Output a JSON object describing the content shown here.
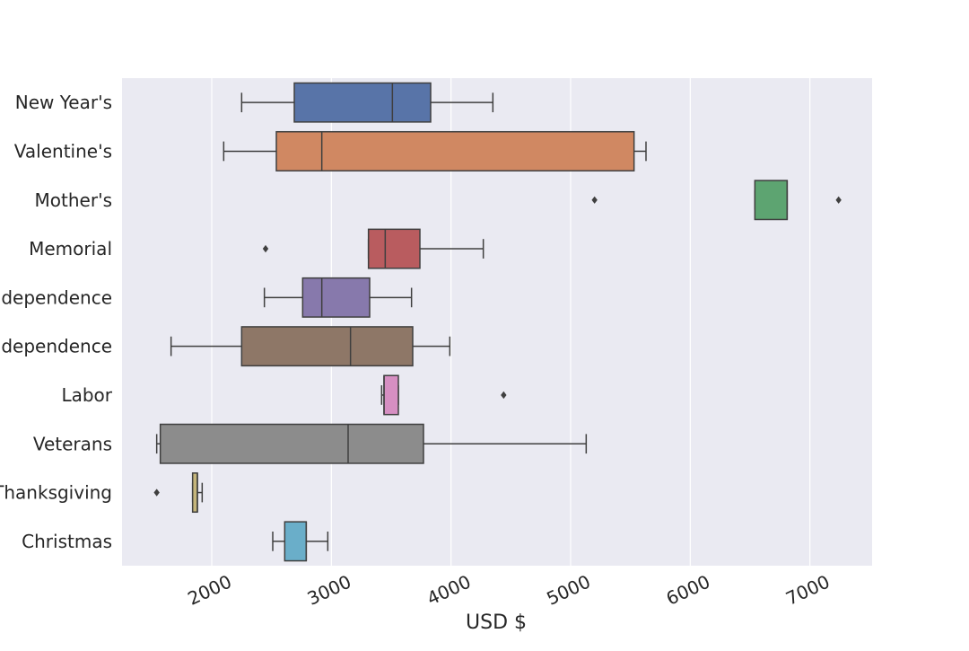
{
  "chart_data": {
    "type": "box",
    "orientation": "horizontal",
    "title": "",
    "xlabel": "USD $",
    "ylabel": "",
    "xlim": [
      1250,
      7520
    ],
    "xticks": [
      2000,
      3000,
      4000,
      5000,
      6000,
      7000
    ],
    "grid": true,
    "categories": [
      "New Year's",
      "Valentine's",
      "Mother's",
      "Memorial",
      "Independence",
      "Independence",
      "Labor",
      "Veterans",
      "Thanksgiving",
      "Christmas"
    ],
    "boxes": [
      {
        "category": "New Year's",
        "whisker_low": 2250,
        "q1": 2690,
        "median": 3510,
        "q3": 3830,
        "whisker_high": 4350,
        "outliers": [],
        "color": "#5874a8"
      },
      {
        "category": "Valentine's",
        "whisker_low": 2100,
        "q1": 2540,
        "median": 2920,
        "q3": 5530,
        "whisker_high": 5630,
        "outliers": [],
        "color": "#d08862"
      },
      {
        "category": "Mother's",
        "whisker_low": 6540,
        "q1": 6540,
        "median": 6810,
        "q3": 6810,
        "whisker_high": 6810,
        "outliers": [
          5200,
          7240
        ],
        "color": "#5da471"
      },
      {
        "category": "Memorial",
        "whisker_low": 3310,
        "q1": 3310,
        "median": 3450,
        "q3": 3740,
        "whisker_high": 4270,
        "outliers": [
          2450
        ],
        "color": "#b95c5f"
      },
      {
        "category": "Independence",
        "whisker_low": 2440,
        "q1": 2760,
        "median": 2920,
        "q3": 3320,
        "whisker_high": 3670,
        "outliers": [],
        "color": "#8779ac"
      },
      {
        "category": "Independence",
        "whisker_low": 1660,
        "q1": 2250,
        "median": 3160,
        "q3": 3680,
        "whisker_high": 3990,
        "outliers": [],
        "color": "#8e7767"
      },
      {
        "category": "Labor",
        "whisker_low": 3420,
        "q1": 3440,
        "median": 3440,
        "q3": 3560,
        "whisker_high": 3560,
        "outliers": [
          4440
        ],
        "color": "#d68fc2"
      },
      {
        "category": "Veterans",
        "whisker_low": 1540,
        "q1": 1570,
        "median": 3140,
        "q3": 3770,
        "whisker_high": 5130,
        "outliers": [],
        "color": "#8c8c8c"
      },
      {
        "category": "Thanksgiving",
        "whisker_low": 1840,
        "q1": 1840,
        "median": 1880,
        "q3": 1880,
        "whisker_high": 1920,
        "outliers": [
          1540
        ],
        "color": "#c5b57b"
      },
      {
        "category": "Christmas",
        "whisker_low": 2510,
        "q1": 2610,
        "median": 2790,
        "q3": 2790,
        "whisker_high": 2970,
        "outliers": [],
        "color": "#6aaec9"
      }
    ]
  }
}
